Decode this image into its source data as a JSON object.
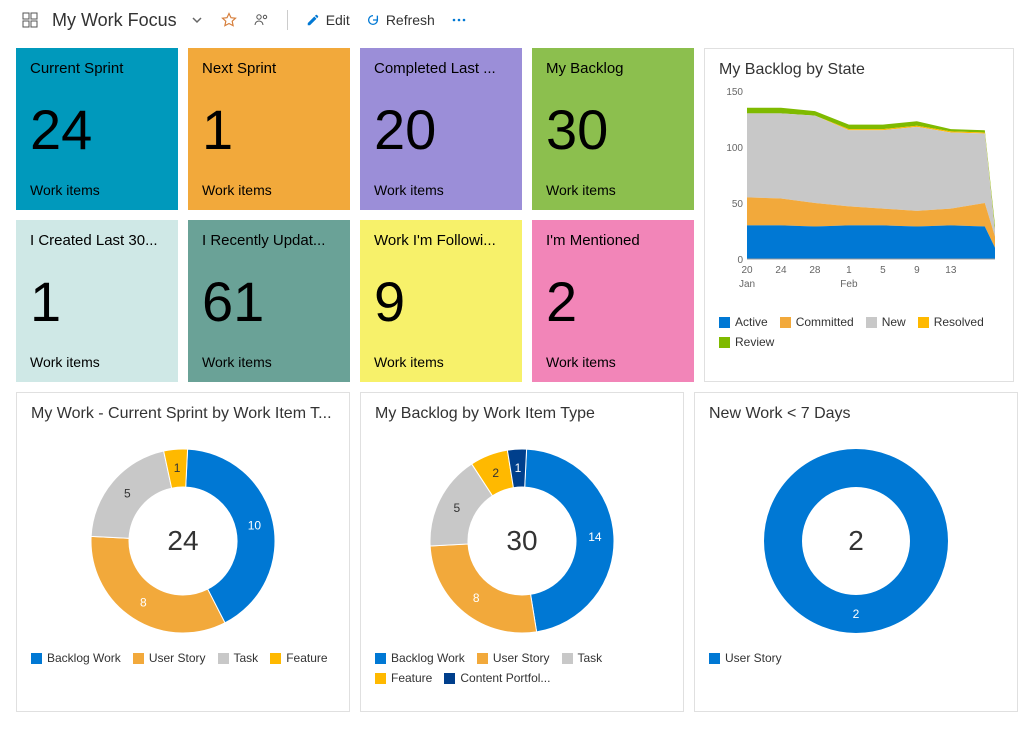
{
  "toolbar": {
    "title": "My Work Focus",
    "edit": "Edit",
    "refresh": "Refresh"
  },
  "tiles": [
    {
      "title": "Current Sprint",
      "value": "24",
      "sub": "Work items",
      "bg": "#0099bc",
      "fg": "#000000"
    },
    {
      "title": "Next Sprint",
      "value": "1",
      "sub": "Work items",
      "bg": "#f2a93b",
      "fg": "#000000"
    },
    {
      "title": "Completed Last ...",
      "value": "20",
      "sub": "Work items",
      "bg": "#9b8ed8",
      "fg": "#000000"
    },
    {
      "title": "My Backlog",
      "value": "30",
      "sub": "Work items",
      "bg": "#8cbf4e",
      "fg": "#000000"
    },
    {
      "title": "I Created Last 30...",
      "value": "1",
      "sub": "Work items",
      "bg": "#cfe8e6",
      "fg": "#000000"
    },
    {
      "title": "I Recently Updat...",
      "value": "61",
      "sub": "Work items",
      "bg": "#6aa297",
      "fg": "#000000"
    },
    {
      "title": "Work I'm Followi...",
      "value": "9",
      "sub": "Work items",
      "bg": "#f7f16a",
      "fg": "#000000"
    },
    {
      "title": "I'm Mentioned",
      "value": "2",
      "sub": "Work items",
      "bg": "#f285b8",
      "fg": "#000000"
    }
  ],
  "backlog_by_state": {
    "title": "My Backlog by State",
    "y_max": 150,
    "y_ticks": [
      "0",
      "50",
      "100",
      "150"
    ],
    "x_ticks": [
      "20",
      "24",
      "28",
      "1",
      "5",
      "9",
      "13"
    ],
    "x_sublabels": {
      "0": "Jan",
      "3": "Feb"
    },
    "series": [
      {
        "name": "Active",
        "color": "#0078d4"
      },
      {
        "name": "Committed",
        "color": "#f2a93b"
      },
      {
        "name": "New",
        "color": "#c8c8c8"
      },
      {
        "name": "Resolved",
        "color": "#ffb900"
      },
      {
        "name": "Review",
        "color": "#7fba00"
      }
    ],
    "x_vals": [
      0,
      1,
      2,
      3,
      4,
      5,
      6,
      7,
      7.3
    ],
    "layers_cum": {
      "active": [
        30,
        30,
        29,
        30,
        30,
        29,
        30,
        29,
        10
      ],
      "committed": [
        55,
        54,
        50,
        47,
        45,
        43,
        45,
        50,
        20
      ],
      "new": [
        130,
        130,
        128,
        115,
        115,
        118,
        113,
        112,
        25
      ],
      "resolved": [
        130,
        130,
        128,
        116,
        116,
        119,
        114,
        113,
        26
      ],
      "review": [
        135,
        135,
        132,
        120,
        120,
        123,
        116,
        115,
        30
      ]
    }
  },
  "charts": [
    {
      "title": "My Work - Current Sprint by Work Item T...",
      "total": "24",
      "slices": [
        {
          "label": "Backlog Work",
          "value": 10,
          "color": "#0078d4"
        },
        {
          "label": "User Story",
          "value": 8,
          "color": "#f2a93b"
        },
        {
          "label": "Task",
          "value": 5,
          "color": "#c8c8c8"
        },
        {
          "label": "Feature",
          "value": 1,
          "color": "#ffb900"
        }
      ],
      "legend": [
        "Backlog Work",
        "User Story",
        "Task",
        "Feature"
      ]
    },
    {
      "title": "My Backlog by Work Item Type",
      "total": "30",
      "slices": [
        {
          "label": "Backlog Work",
          "value": 14,
          "color": "#0078d4"
        },
        {
          "label": "User Story",
          "value": 8,
          "color": "#f2a93b"
        },
        {
          "label": "Task",
          "value": 5,
          "color": "#c8c8c8"
        },
        {
          "label": "Feature",
          "value": 2,
          "color": "#ffb900"
        },
        {
          "label": "Content Portfol...",
          "value": 1,
          "color": "#003f8c"
        }
      ],
      "legend": [
        "Backlog Work",
        "User Story",
        "Task",
        "Feature",
        "Content Portfol..."
      ]
    },
    {
      "title": "New Work < 7 Days",
      "total": "2",
      "slices": [
        {
          "label": "User Story",
          "value": 2,
          "color": "#0078d4"
        }
      ],
      "legend": [
        "User Story"
      ]
    }
  ]
}
